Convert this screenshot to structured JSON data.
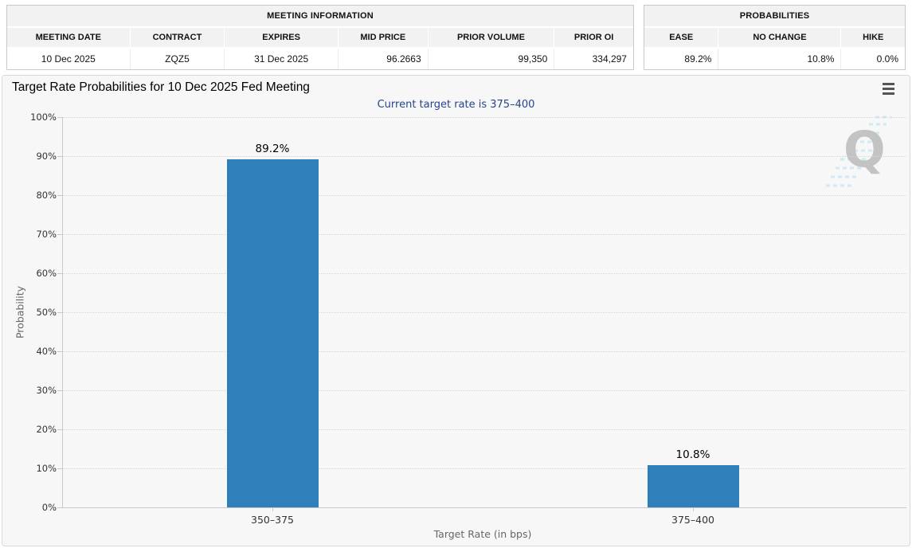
{
  "meeting_information": {
    "title": "MEETING INFORMATION",
    "columns": [
      "MEETING DATE",
      "CONTRACT",
      "EXPIRES",
      "MID PRICE",
      "PRIOR VOLUME",
      "PRIOR OI"
    ],
    "values": [
      "10 Dec 2025",
      "ZQZ5",
      "31 Dec 2025",
      "96.2663",
      "99,350",
      "334,297"
    ]
  },
  "probabilities": {
    "title": "PROBABILITIES",
    "columns": [
      "EASE",
      "NO CHANGE",
      "HIKE"
    ],
    "values": [
      "89.2%",
      "10.8%",
      "0.0%"
    ]
  },
  "chart": {
    "menu_icon": "hamburger-menu-icon",
    "watermark_letter": "Q"
  },
  "chart_data": {
    "type": "bar",
    "title": "Target Rate Probabilities for 10 Dec 2025 Fed Meeting",
    "subtitle": "Current target rate is 375–400",
    "categories": [
      "350–375",
      "375–400"
    ],
    "values": [
      89.2,
      10.8
    ],
    "data_labels": [
      "89.2%",
      "10.8%"
    ],
    "xlabel": "Target Rate (in bps)",
    "ylabel": "Probability",
    "ylim": [
      0,
      100
    ],
    "ytick_interval": 10,
    "ytick_labels": [
      "0%",
      "10%",
      "20%",
      "30%",
      "40%",
      "50%",
      "60%",
      "70%",
      "80%",
      "90%",
      "100%"
    ],
    "bar_color": "#2f80ba",
    "grid": "dotted-horizontal",
    "legend": "none"
  },
  "colors": {
    "bar": "#2f80ba",
    "subtitle_text": "#26458c",
    "panel_background": "#f7f7f7",
    "table_header_background": "#f2f2f2",
    "gridline": "#d6d6d6",
    "axis_line": "#c9c9c9",
    "muted_text": "#666666"
  }
}
